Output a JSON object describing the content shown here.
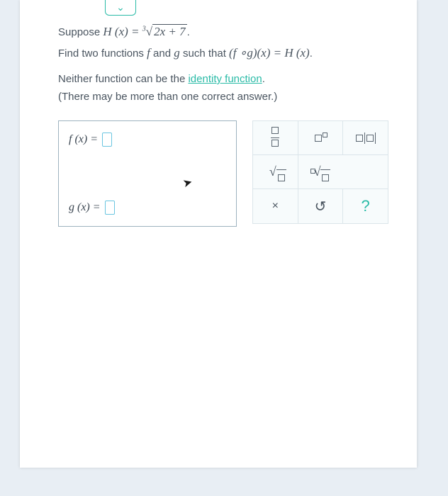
{
  "dropdown": {
    "icon": "⌄"
  },
  "problem": {
    "line1_prefix": "Suppose ",
    "line1_func": "H (x) = ",
    "line1_radidx": "3",
    "line1_radicand": "2x + 7",
    "line1_suffix": ".",
    "line2_a": "Find two functions ",
    "line2_f": "f ",
    "line2_b": "and ",
    "line2_g": "g ",
    "line2_c": "such that ",
    "line2_comp": "(f ∘g)(x) = H (x)",
    "line2_d": ".",
    "line3_a": "Neither function can be the ",
    "line3_link": "identity function",
    "line3_b": ".",
    "line4": "(There may be more than one correct answer.)"
  },
  "answers": {
    "f_label": "f (x)  = ",
    "g_label": "g (x)  = "
  },
  "tools": {
    "clear": "×",
    "undo": "↺",
    "help": "?"
  },
  "colors": {
    "background": "#e8eef4",
    "page": "#ffffff",
    "text": "#4a5560",
    "accent": "#2abba7",
    "border": "#9db2bf",
    "toolbg": "#f7fbfc",
    "inputborder": "#6ac5e0"
  }
}
